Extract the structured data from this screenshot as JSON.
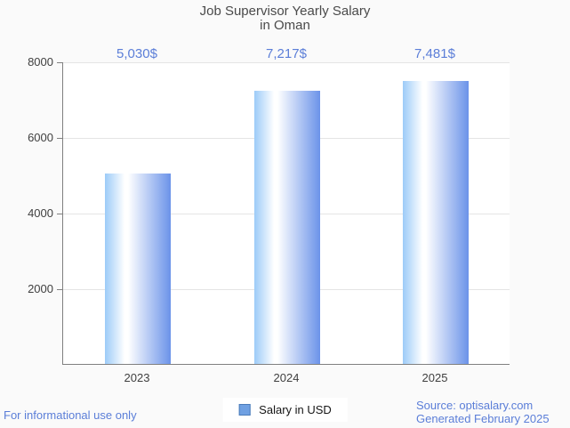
{
  "title": {
    "line1": "Job Supervisor Yearly Salary",
    "line2": "in Oman"
  },
  "chart_data": {
    "type": "bar",
    "title": "Job Supervisor Yearly Salary in Oman",
    "categories": [
      "2023",
      "2024",
      "2025"
    ],
    "values": [
      5030,
      7217,
      7481
    ],
    "value_labels": [
      "5,030$",
      "7,217$",
      "7,481$"
    ],
    "series_name": "Salary in USD",
    "xlabel": "",
    "ylabel": "",
    "ylim": [
      0,
      8000
    ],
    "yticks": [
      2000,
      4000,
      6000,
      8000
    ],
    "grid": true,
    "legend_position": "bottom-center"
  },
  "legend": {
    "label": "Salary in USD"
  },
  "footer": {
    "left": "For informational use only",
    "source": "Source: optisalary.com",
    "generated": "Generated February 2025"
  },
  "colors": {
    "accent_text": "#5b7ed8",
    "bar_gradient_left": "#9ccbf8",
    "bar_gradient_mid": "#ffffff",
    "bar_gradient_right": "#6b93e9",
    "legend_swatch_fill": "#6fa0e2",
    "legend_swatch_border": "#4c7cba",
    "axis": "#808080",
    "gridline": "#e4e4e4",
    "text_dark": "#3f3f3f",
    "title_text": "#4a4a4a",
    "plot_background": "#ffffff",
    "page_background": "#fafafa"
  }
}
